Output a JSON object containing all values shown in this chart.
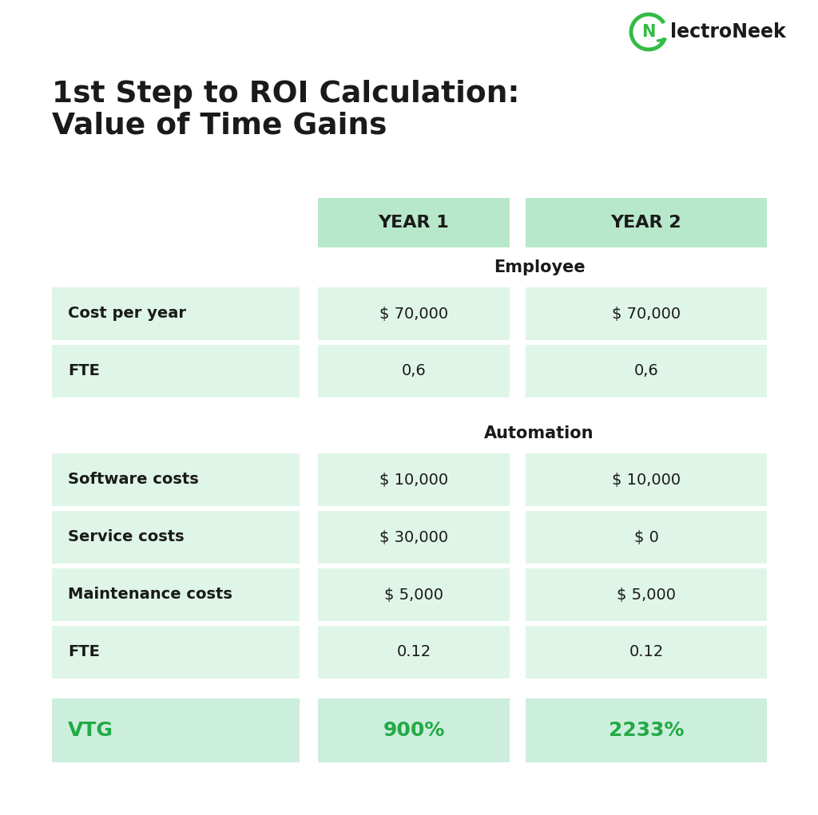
{
  "title_line1": "1st Step to ROI Calculation:",
  "title_line2": "Value of Time Gains",
  "col_headers": [
    "YEAR 1",
    "YEAR 2"
  ],
  "section1_label": "Employee",
  "section2_label": "Automation",
  "rows_employee": [
    {
      "label": "Cost per year",
      "year1": "$ 70,000",
      "year2": "$ 70,000"
    },
    {
      "label": "FTE",
      "year1": "0,6",
      "year2": "0,6"
    }
  ],
  "rows_automation": [
    {
      "label": "Software costs",
      "year1": "$ 10,000",
      "year2": "$ 10,000"
    },
    {
      "label": "Service costs",
      "year1": "$ 30,000",
      "year2": "$ 0"
    },
    {
      "label": "Maintenance costs",
      "year1": "$ 5,000",
      "year2": "$ 5,000"
    },
    {
      "label": "FTE",
      "year1": "0.12",
      "year2": "0.12"
    }
  ],
  "vtg_label": "VTG",
  "vtg_year1": "900%",
  "vtg_year2": "2233%",
  "header_bg": "#b8e8cb",
  "row_bg_light": "#dff5e8",
  "vtg_bg": "#cceedd",
  "green_color": "#22aa44",
  "black_color": "#1a1a1a",
  "bg_color": "#ffffff",
  "logo_text": "lectroNeek",
  "logo_green": "#33bb44",
  "gap_color": "#ffffff"
}
